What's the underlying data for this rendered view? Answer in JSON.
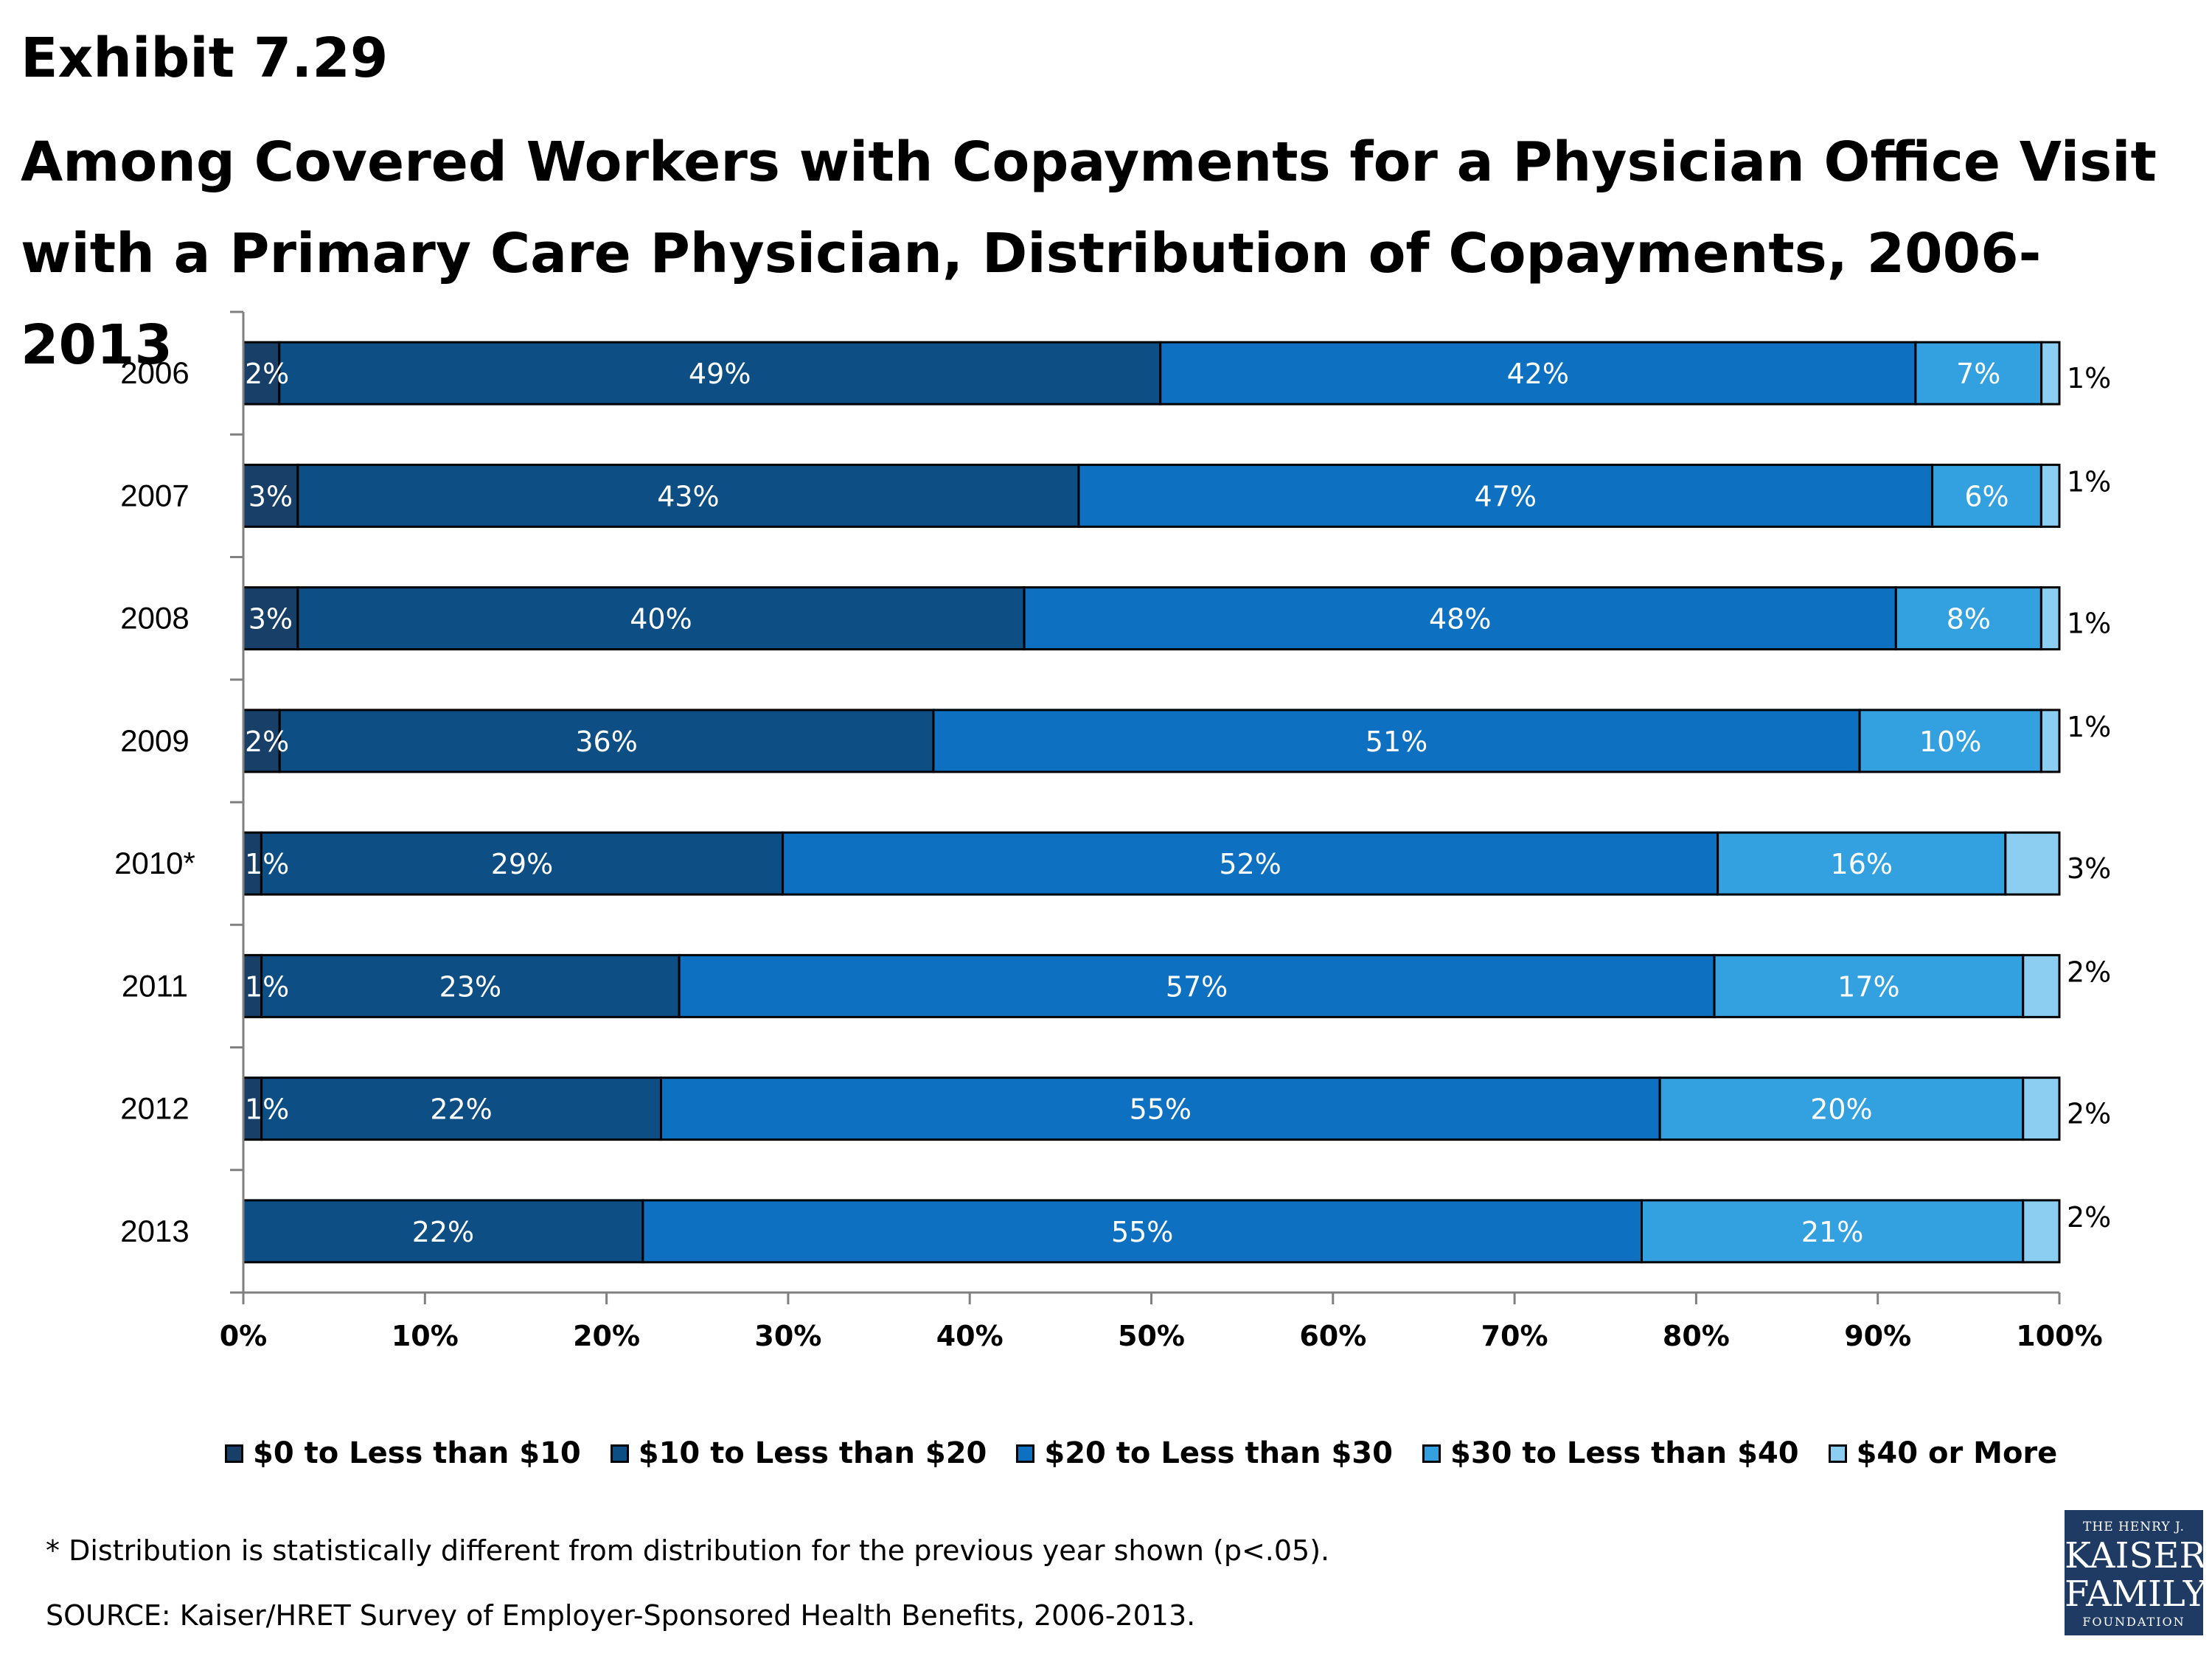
{
  "header": {
    "exhibit": "Exhibit 7.29",
    "title": "Among Covered Workers with Copayments for a Physician Office Visit with a Primary Care Physician, Distribution of Copayments, 2006-2013"
  },
  "chart_data": {
    "type": "bar",
    "orientation": "horizontal",
    "stacked": true,
    "categories": [
      "2006",
      "2007",
      "2008",
      "2009",
      "2010*",
      "2011",
      "2012",
      "2013"
    ],
    "series": [
      {
        "name": "$0 to Less than $10",
        "values": [
          2,
          3,
          3,
          2,
          1,
          1,
          1,
          0
        ],
        "labels": [
          "2%",
          "3%",
          "3%",
          "2%",
          "1%",
          "1%",
          "1%",
          ""
        ]
      },
      {
        "name": "$10 to Less than $20",
        "values": [
          49,
          43,
          40,
          36,
          29,
          23,
          22,
          22
        ],
        "labels": [
          "49%",
          "43%",
          "40%",
          "36%",
          "29%",
          "23%",
          "22%",
          "22%"
        ]
      },
      {
        "name": "$20 to Less than $30",
        "values": [
          42,
          47,
          48,
          51,
          52,
          57,
          55,
          55
        ],
        "labels": [
          "42%",
          "47%",
          "48%",
          "51%",
          "52%",
          "57%",
          "55%",
          "55%"
        ]
      },
      {
        "name": "$30 to Less than $40",
        "values": [
          7,
          6,
          8,
          10,
          16,
          17,
          20,
          21
        ],
        "labels": [
          "7%",
          "6%",
          "8%",
          "10%",
          "16%",
          "17%",
          "20%",
          "21%"
        ]
      },
      {
        "name": "$40 or More",
        "values": [
          1,
          1,
          1,
          1,
          3,
          2,
          2,
          2
        ],
        "labels": [
          "1%",
          "1%",
          "1%",
          "1%",
          "3%",
          "2%",
          "2%",
          "2%"
        ]
      }
    ],
    "colors": [
      "#173f68",
      "#0d4e84",
      "#0e70c0",
      "#33a0e0",
      "#8ccef1"
    ],
    "xlim": [
      0,
      100
    ],
    "xticks": [
      "0%",
      "10%",
      "20%",
      "30%",
      "40%",
      "50%",
      "60%",
      "70%",
      "80%",
      "90%",
      "100%"
    ],
    "legend_position": "bottom",
    "grid": false
  },
  "footer": {
    "note": "* Distribution is statistically different from distribution for the previous year shown (p<.05).",
    "source": "SOURCE:  Kaiser/HRET Survey of Employer-Sponsored Health Benefits, 2006-2013.",
    "logo": {
      "line1": "THE HENRY J.",
      "line2": "KAISER",
      "line3": "FAMILY",
      "line4": "FOUNDATION"
    }
  }
}
